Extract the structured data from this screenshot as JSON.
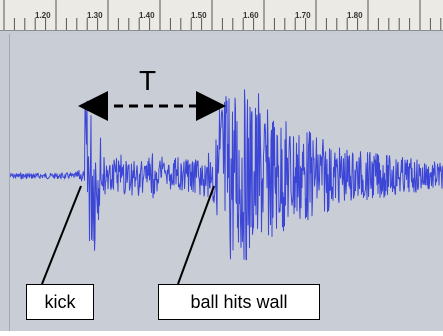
{
  "ruler": {
    "ticks": [
      "1.20",
      "1.30",
      "1.40",
      "1.50",
      "1.60",
      "1.70",
      "1.80"
    ]
  },
  "annotations": {
    "period_label": "T",
    "kick_label": "kick",
    "ball_label": "ball hits wall"
  },
  "colors": {
    "waveform": "#3b45d6",
    "background": "#c9cdd6",
    "ruler_bg": "#eceae4"
  }
}
